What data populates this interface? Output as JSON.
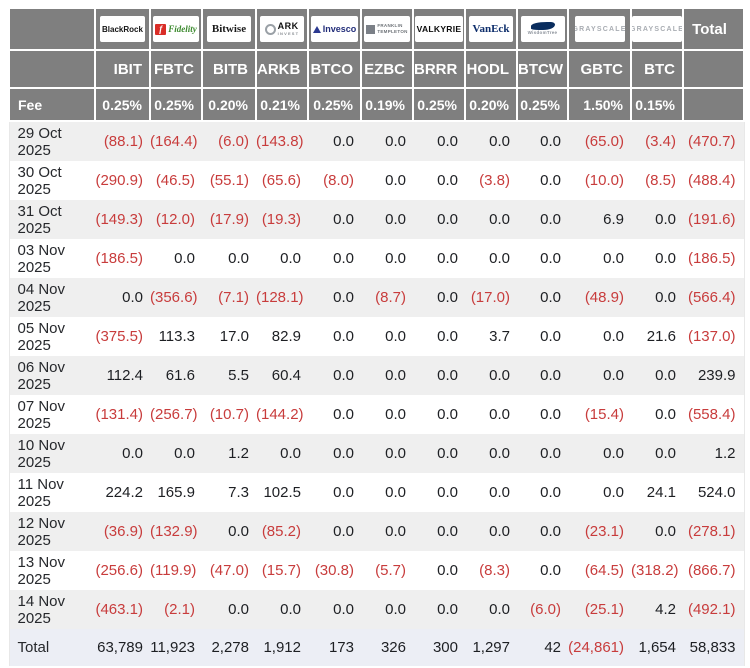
{
  "colors": {
    "header_bg": "#7f7f7f",
    "header_text": "#ffffff",
    "negative_value": "#c83c3c",
    "positive_value": "#1d1f23",
    "stripe_row_bg": "#efefef",
    "total_row_bg": "#eceef5"
  },
  "chart_data": {
    "type": "table",
    "fee_label": "Fee",
    "total_column_label": "Total",
    "total_row_label": "Total",
    "columns": [
      {
        "issuer": "BlackRock",
        "brand": "blackrock",
        "ticker": "IBIT",
        "fee": "0.25%"
      },
      {
        "issuer": "Fidelity",
        "brand": "fidelity",
        "ticker": "FBTC",
        "fee": "0.25%"
      },
      {
        "issuer": "Bitwise",
        "brand": "bitwise",
        "ticker": "BITB",
        "fee": "0.20%"
      },
      {
        "issuer": "ARK",
        "issuer2": "INVEST",
        "brand": "ark",
        "ticker": "ARKB",
        "fee": "0.21%"
      },
      {
        "issuer": "Invesco",
        "brand": "invesco",
        "ticker": "BTCO",
        "fee": "0.25%"
      },
      {
        "issuer": "FRANKLIN",
        "issuer2": "TEMPLETON",
        "brand": "franklin",
        "ticker": "EZBC",
        "fee": "0.19%"
      },
      {
        "issuer": "VALKYRIE",
        "brand": "valkyrie",
        "ticker": "BRRR",
        "fee": "0.25%"
      },
      {
        "issuer": "VanEck",
        "brand": "vaneck",
        "ticker": "HODL",
        "fee": "0.20%"
      },
      {
        "issuer": "WisdomTree",
        "brand": "wisdomtree",
        "ticker": "BTCW",
        "fee": "0.25%"
      },
      {
        "issuer": "GRAYSCALE",
        "brand": "grayscale",
        "ticker": "GBTC",
        "fee": "1.50%"
      },
      {
        "issuer": "GRAYSCALE",
        "brand": "grayscale",
        "ticker": "BTC",
        "fee": "0.15%"
      }
    ],
    "rows": [
      {
        "date": "29 Oct 2025",
        "values": [
          -88.1,
          -164.4,
          -6.0,
          -143.8,
          0.0,
          0.0,
          0.0,
          0.0,
          0.0,
          -65.0,
          -3.4,
          -470.7
        ]
      },
      {
        "date": "30 Oct 2025",
        "values": [
          -290.9,
          -46.5,
          -55.1,
          -65.6,
          -8.0,
          0.0,
          0.0,
          -3.8,
          0.0,
          -10.0,
          -8.5,
          -488.4
        ]
      },
      {
        "date": "31 Oct 2025",
        "values": [
          -149.3,
          -12.0,
          -17.9,
          -19.3,
          0.0,
          0.0,
          0.0,
          0.0,
          0.0,
          6.9,
          0.0,
          -191.6
        ]
      },
      {
        "date": "03 Nov 2025",
        "values": [
          -186.5,
          0.0,
          0.0,
          0.0,
          0.0,
          0.0,
          0.0,
          0.0,
          0.0,
          0.0,
          0.0,
          -186.5
        ]
      },
      {
        "date": "04 Nov 2025",
        "values": [
          0.0,
          -356.6,
          -7.1,
          -128.1,
          0.0,
          -8.7,
          0.0,
          -17.0,
          0.0,
          -48.9,
          0.0,
          -566.4
        ]
      },
      {
        "date": "05 Nov 2025",
        "values": [
          -375.5,
          113.3,
          17.0,
          82.9,
          0.0,
          0.0,
          0.0,
          3.7,
          0.0,
          0.0,
          21.6,
          -137.0
        ]
      },
      {
        "date": "06 Nov 2025",
        "values": [
          112.4,
          61.6,
          5.5,
          60.4,
          0.0,
          0.0,
          0.0,
          0.0,
          0.0,
          0.0,
          0.0,
          239.9
        ]
      },
      {
        "date": "07 Nov 2025",
        "values": [
          -131.4,
          -256.7,
          -10.7,
          -144.2,
          0.0,
          0.0,
          0.0,
          0.0,
          0.0,
          -15.4,
          0.0,
          -558.4
        ]
      },
      {
        "date": "10 Nov 2025",
        "values": [
          0.0,
          0.0,
          1.2,
          0.0,
          0.0,
          0.0,
          0.0,
          0.0,
          0.0,
          0.0,
          0.0,
          1.2
        ]
      },
      {
        "date": "11 Nov 2025",
        "values": [
          224.2,
          165.9,
          7.3,
          102.5,
          0.0,
          0.0,
          0.0,
          0.0,
          0.0,
          0.0,
          24.1,
          524.0
        ]
      },
      {
        "date": "12 Nov 2025",
        "values": [
          -36.9,
          -132.9,
          0.0,
          -85.2,
          0.0,
          0.0,
          0.0,
          0.0,
          0.0,
          -23.1,
          0.0,
          -278.1
        ]
      },
      {
        "date": "13 Nov 2025",
        "values": [
          -256.6,
          -119.9,
          -47.0,
          -15.7,
          -30.8,
          -5.7,
          0.0,
          -8.3,
          0.0,
          -64.5,
          -318.2,
          -866.7
        ]
      },
      {
        "date": "14 Nov 2025",
        "values": [
          -463.1,
          -2.1,
          0.0,
          0.0,
          0.0,
          0.0,
          0.0,
          0.0,
          -6.0,
          -25.1,
          4.2,
          -492.1
        ]
      }
    ],
    "total_row": {
      "values": [
        63789,
        11923,
        2278,
        1912,
        173,
        326,
        300,
        1297,
        42,
        -24861,
        1654,
        58833
      ]
    },
    "value_format": "negative values shown in parentheses and red"
  }
}
